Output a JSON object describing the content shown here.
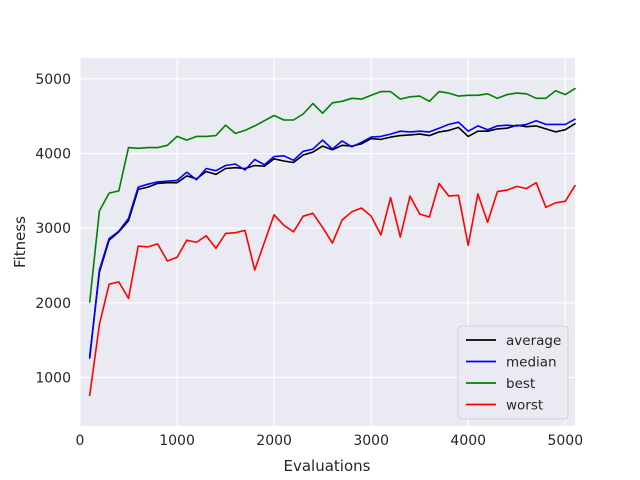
{
  "chart_data": {
    "type": "line",
    "title": "",
    "xlabel": "Evaluations",
    "ylabel": "Fitness",
    "xlim": [
      0,
      5100
    ],
    "ylim": [
      350,
      5280
    ],
    "xticks": [
      0,
      1000,
      2000,
      3000,
      4000,
      5000
    ],
    "yticks": [
      1000,
      2000,
      3000,
      4000,
      5000
    ],
    "grid": true,
    "legend_position": "lower-right",
    "background": "#eaeaf2",
    "x": [
      100,
      200,
      300,
      400,
      500,
      600,
      700,
      800,
      900,
      1000,
      1100,
      1200,
      1300,
      1400,
      1500,
      1600,
      1700,
      1800,
      1900,
      2000,
      2100,
      2200,
      2300,
      2400,
      2500,
      2600,
      2700,
      2800,
      2900,
      3000,
      3100,
      3200,
      3300,
      3400,
      3500,
      3600,
      3700,
      3800,
      3900,
      4000,
      4100,
      4200,
      4300,
      4400,
      4500,
      4600,
      4700,
      4800,
      4900,
      5000,
      5100
    ],
    "series": [
      {
        "name": "average",
        "color": "#000000",
        "values": [
          1280,
          2410,
          2840,
          2950,
          3100,
          3520,
          3550,
          3600,
          3610,
          3610,
          3700,
          3660,
          3760,
          3720,
          3800,
          3810,
          3800,
          3840,
          3830,
          3930,
          3900,
          3880,
          3980,
          4020,
          4100,
          4050,
          4110,
          4100,
          4130,
          4200,
          4190,
          4220,
          4240,
          4250,
          4260,
          4240,
          4290,
          4310,
          4350,
          4230,
          4300,
          4300,
          4330,
          4340,
          4380,
          4360,
          4370,
          4330,
          4290,
          4320,
          4400
        ]
      },
      {
        "name": "median",
        "color": "#0000ff",
        "values": [
          1260,
          2440,
          2860,
          2960,
          3130,
          3550,
          3590,
          3620,
          3630,
          3640,
          3750,
          3650,
          3800,
          3770,
          3840,
          3860,
          3780,
          3920,
          3850,
          3960,
          3970,
          3910,
          4030,
          4060,
          4180,
          4060,
          4170,
          4090,
          4150,
          4220,
          4230,
          4260,
          4300,
          4290,
          4300,
          4290,
          4340,
          4390,
          4420,
          4300,
          4370,
          4320,
          4370,
          4380,
          4370,
          4390,
          4440,
          4390,
          4390,
          4390,
          4460
        ]
      },
      {
        "name": "best",
        "color": "#008000",
        "values": [
          2010,
          3230,
          3470,
          3500,
          4080,
          4070,
          4080,
          4080,
          4110,
          4230,
          4180,
          4230,
          4230,
          4240,
          4380,
          4270,
          4310,
          4370,
          4440,
          4510,
          4450,
          4450,
          4530,
          4670,
          4540,
          4680,
          4700,
          4740,
          4730,
          4780,
          4830,
          4830,
          4730,
          4760,
          4770,
          4700,
          4830,
          4810,
          4770,
          4780,
          4780,
          4800,
          4740,
          4790,
          4810,
          4800,
          4740,
          4740,
          4840,
          4790,
          4870
        ]
      },
      {
        "name": "worst",
        "color": "#ff0000",
        "values": [
          760,
          1710,
          2250,
          2280,
          2060,
          2760,
          2750,
          2790,
          2560,
          2610,
          2840,
          2810,
          2900,
          2730,
          2930,
          2940,
          2970,
          2440,
          2810,
          3180,
          3040,
          2950,
          3160,
          3200,
          3010,
          2800,
          3110,
          3220,
          3270,
          3160,
          2910,
          3410,
          2880,
          3430,
          3190,
          3150,
          3600,
          3430,
          3440,
          2770,
          3460,
          3080,
          3490,
          3510,
          3560,
          3530,
          3610,
          3280,
          3340,
          3360,
          3570
        ]
      }
    ]
  }
}
